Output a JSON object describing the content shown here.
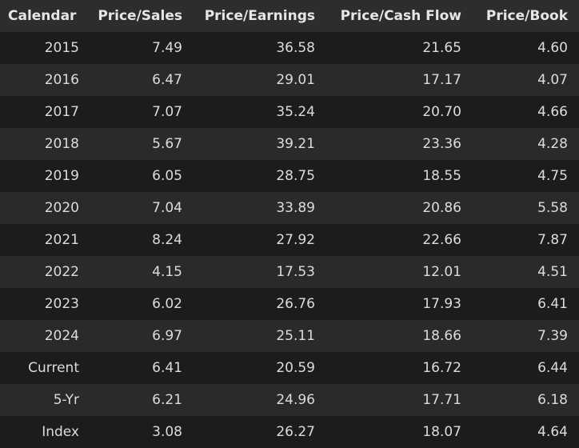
{
  "columns": [
    "Calendar",
    "Price/Sales",
    "Price/Earnings",
    "Price/Cash Flow",
    "Price/Book"
  ],
  "rows": [
    [
      "2015",
      "7.49",
      "36.58",
      "21.65",
      "4.60"
    ],
    [
      "2016",
      "6.47",
      "29.01",
      "17.17",
      "4.07"
    ],
    [
      "2017",
      "7.07",
      "35.24",
      "20.70",
      "4.66"
    ],
    [
      "2018",
      "5.67",
      "39.21",
      "23.36",
      "4.28"
    ],
    [
      "2019",
      "6.05",
      "28.75",
      "18.55",
      "4.75"
    ],
    [
      "2020",
      "7.04",
      "33.89",
      "20.86",
      "5.58"
    ],
    [
      "2021",
      "8.24",
      "27.92",
      "22.66",
      "7.87"
    ],
    [
      "2022",
      "4.15",
      "17.53",
      "12.01",
      "4.51"
    ],
    [
      "2023",
      "6.02",
      "26.76",
      "17.93",
      "6.41"
    ],
    [
      "2024",
      "6.97",
      "25.11",
      "18.66",
      "7.39"
    ],
    [
      "Current",
      "6.41",
      "20.59",
      "16.72",
      "6.44"
    ],
    [
      "5-Yr",
      "6.21",
      "24.96",
      "17.71",
      "6.18"
    ],
    [
      "Index",
      "3.08",
      "26.27",
      "18.07",
      "4.64"
    ]
  ],
  "colors": {
    "background": "#1e1e1e",
    "header_background": "#2d2d2d",
    "row_odd": "#1c1c1c",
    "row_even": "#2a2a2a",
    "text": "#dcdcdc"
  }
}
